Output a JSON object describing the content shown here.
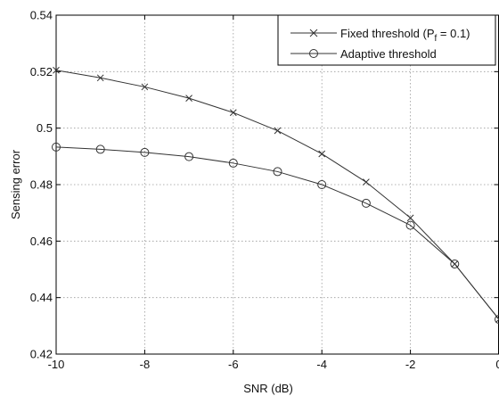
{
  "chart_data": {
    "type": "line",
    "xlabel": "SNR (dB)",
    "ylabel": "Sensing error",
    "xlim": [
      -10,
      0
    ],
    "ylim": [
      0.42,
      0.54
    ],
    "x_ticks": [
      -10,
      -8,
      -6,
      -4,
      -2,
      0
    ],
    "y_ticks": [
      0.42,
      0.44,
      0.46,
      0.48,
      0.5,
      0.52,
      0.54
    ],
    "grid": true,
    "legend_position": "top-right",
    "x": [
      -10,
      -9,
      -8,
      -7,
      -6,
      -5,
      -4,
      -3,
      -2,
      -1,
      0
    ],
    "series": [
      {
        "legend_prefix": "Fixed threshold (P",
        "legend_sub": "f",
        "legend_suffix": " = 0.1)",
        "marker": "x",
        "values": [
          0.5205,
          0.5178,
          0.5146,
          0.5106,
          0.5055,
          0.4991,
          0.4909,
          0.4809,
          0.4682,
          0.4519,
          0.4323
        ]
      },
      {
        "name": "Adaptive threshold",
        "marker": "o",
        "values": [
          0.4933,
          0.4925,
          0.4914,
          0.4899,
          0.4876,
          0.4846,
          0.48,
          0.4734,
          0.4656,
          0.4519,
          0.4323
        ]
      }
    ]
  }
}
